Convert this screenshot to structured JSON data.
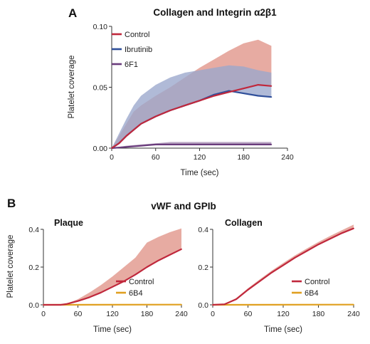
{
  "figure": {
    "panel_a_label": "A",
    "panel_b_label": "B",
    "panel_b_title": "vWF and GPIb"
  },
  "colors": {
    "control": "#c0283c",
    "control_band": "#e2998e",
    "ibrutinib": "#2f4f9a",
    "ibrutinib_band": "#9aa6cc",
    "f6f1": "#6a3c7c",
    "f6f1_band": "#a890b4",
    "b6b4": "#e0a020"
  },
  "chart_data": [
    {
      "id": "A",
      "type": "line",
      "title": "Collagen and Integrin α2β1",
      "xlabel": "Time (sec)",
      "ylabel": "Platelet coverage",
      "xlim": [
        0,
        240
      ],
      "ylim": [
        0,
        0.1
      ],
      "xticks": [
        "0",
        "60",
        "120",
        "180",
        "240"
      ],
      "yticks": [
        "0.00",
        "0.05",
        "0.10"
      ],
      "legend_position": "top-left",
      "series": [
        {
          "name": "Control",
          "color": "#c0283c",
          "band_color": "#e2998e",
          "x": [
            0,
            10,
            20,
            30,
            40,
            60,
            80,
            100,
            120,
            140,
            160,
            180,
            200,
            218
          ],
          "y": [
            0.0,
            0.004,
            0.01,
            0.015,
            0.02,
            0.026,
            0.031,
            0.035,
            0.039,
            0.043,
            0.046,
            0.049,
            0.052,
            0.051
          ],
          "upper": [
            0.0,
            0.01,
            0.02,
            0.03,
            0.035,
            0.043,
            0.05,
            0.058,
            0.066,
            0.073,
            0.08,
            0.086,
            0.089,
            0.084
          ]
        },
        {
          "name": "Ibrutinib",
          "color": "#2f4f9a",
          "band_color": "#9aa6cc",
          "x": [
            0,
            10,
            20,
            30,
            40,
            60,
            80,
            100,
            120,
            140,
            160,
            180,
            200,
            218
          ],
          "y": [
            0.0,
            0.004,
            0.01,
            0.015,
            0.02,
            0.026,
            0.031,
            0.035,
            0.039,
            0.044,
            0.047,
            0.045,
            0.043,
            0.042
          ],
          "upper": [
            0.0,
            0.012,
            0.024,
            0.035,
            0.043,
            0.052,
            0.058,
            0.062,
            0.064,
            0.066,
            0.068,
            0.067,
            0.064,
            0.062
          ]
        },
        {
          "name": "6F1",
          "color": "#6a3c7c",
          "band_color": "#a890b4",
          "x": [
            0,
            20,
            40,
            60,
            80,
            100,
            120,
            140,
            160,
            180,
            200,
            218
          ],
          "y": [
            0.0,
            0.001,
            0.002,
            0.003,
            0.003,
            0.003,
            0.003,
            0.003,
            0.003,
            0.003,
            0.003,
            0.003
          ],
          "upper": [
            0.0,
            0.002,
            0.003,
            0.004,
            0.005,
            0.005,
            0.005,
            0.005,
            0.005,
            0.005,
            0.005,
            0.005
          ]
        }
      ]
    },
    {
      "id": "B-plaque",
      "type": "line",
      "title": "Plaque",
      "xlabel": "Time (sec)",
      "ylabel": "Platelet coverage",
      "xlim": [
        0,
        240
      ],
      "ylim": [
        0,
        0.4
      ],
      "xticks": [
        "0",
        "60",
        "120",
        "180",
        "240"
      ],
      "yticks": [
        "0.0",
        "0.2",
        "0.4"
      ],
      "legend_position": "bottom-right",
      "series": [
        {
          "name": "Control",
          "color": "#c0283c",
          "band_color": "#e2998e",
          "x": [
            0,
            30,
            40,
            60,
            80,
            100,
            120,
            140,
            160,
            180,
            200,
            220,
            240
          ],
          "y": [
            0.0,
            0.0,
            0.004,
            0.02,
            0.04,
            0.065,
            0.095,
            0.125,
            0.16,
            0.2,
            0.235,
            0.265,
            0.295
          ],
          "upper": [
            0.0,
            0.0,
            0.006,
            0.03,
            0.065,
            0.105,
            0.15,
            0.2,
            0.25,
            0.33,
            0.36,
            0.385,
            0.405
          ]
        },
        {
          "name": "6B4",
          "color": "#e0a020",
          "x": [
            0,
            240
          ],
          "y": [
            0.0,
            0.001
          ]
        }
      ]
    },
    {
      "id": "B-collagen",
      "type": "line",
      "title": "Collagen",
      "xlabel": "Time (sec)",
      "ylabel": "",
      "xlim": [
        0,
        240
      ],
      "ylim": [
        0,
        0.4
      ],
      "xticks": [
        "0",
        "60",
        "120",
        "180",
        "240"
      ],
      "yticks": [
        "0.0",
        "0.2",
        "0.4"
      ],
      "legend_position": "bottom-right",
      "series": [
        {
          "name": "Control",
          "color": "#c0283c",
          "band_color": "#e2998e",
          "x": [
            0,
            20,
            40,
            60,
            80,
            100,
            120,
            140,
            160,
            180,
            200,
            220,
            240
          ],
          "y": [
            0.0,
            0.003,
            0.03,
            0.08,
            0.125,
            0.17,
            0.21,
            0.25,
            0.285,
            0.32,
            0.35,
            0.38,
            0.405
          ],
          "upper": [
            0.0,
            0.005,
            0.036,
            0.088,
            0.135,
            0.18,
            0.222,
            0.262,
            0.298,
            0.333,
            0.365,
            0.395,
            0.425
          ]
        },
        {
          "name": "6B4",
          "color": "#e0a020",
          "x": [
            0,
            240
          ],
          "y": [
            0.0,
            0.001
          ]
        }
      ]
    }
  ]
}
